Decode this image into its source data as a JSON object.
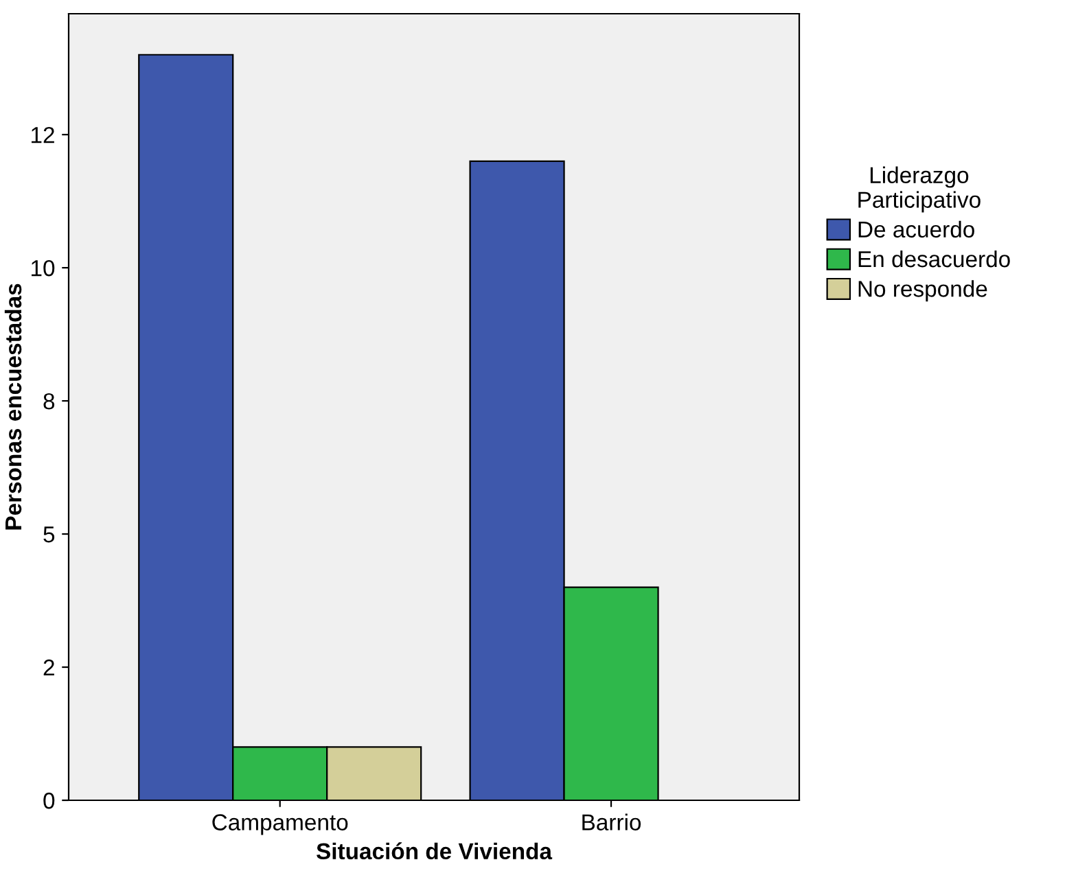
{
  "chart_data": {
    "type": "bar",
    "xlabel": "Situación de Vivienda",
    "ylabel": "Personas encuestadas",
    "legend_title": "Liderazgo\nParticipativo",
    "categories": [
      "Campamento",
      "Barrio"
    ],
    "series": [
      {
        "name": "De acuerdo",
        "color": "#3e58ac",
        "values": [
          14,
          12
        ]
      },
      {
        "name": "En desacuerdo",
        "color": "#2fb84b",
        "values": [
          1,
          4
        ]
      },
      {
        "name": "No responde",
        "color": "#d4cf99",
        "values": [
          1,
          null
        ]
      }
    ],
    "ylim": [
      0,
      14.77
    ],
    "yticks": [
      0,
      {
        "value": 2.5,
        "label": "2"
      },
      5,
      {
        "value": 7.5,
        "label": "8"
      },
      10,
      {
        "value": 12.5,
        "label": "12"
      }
    ],
    "grid": false,
    "legend": "right"
  }
}
